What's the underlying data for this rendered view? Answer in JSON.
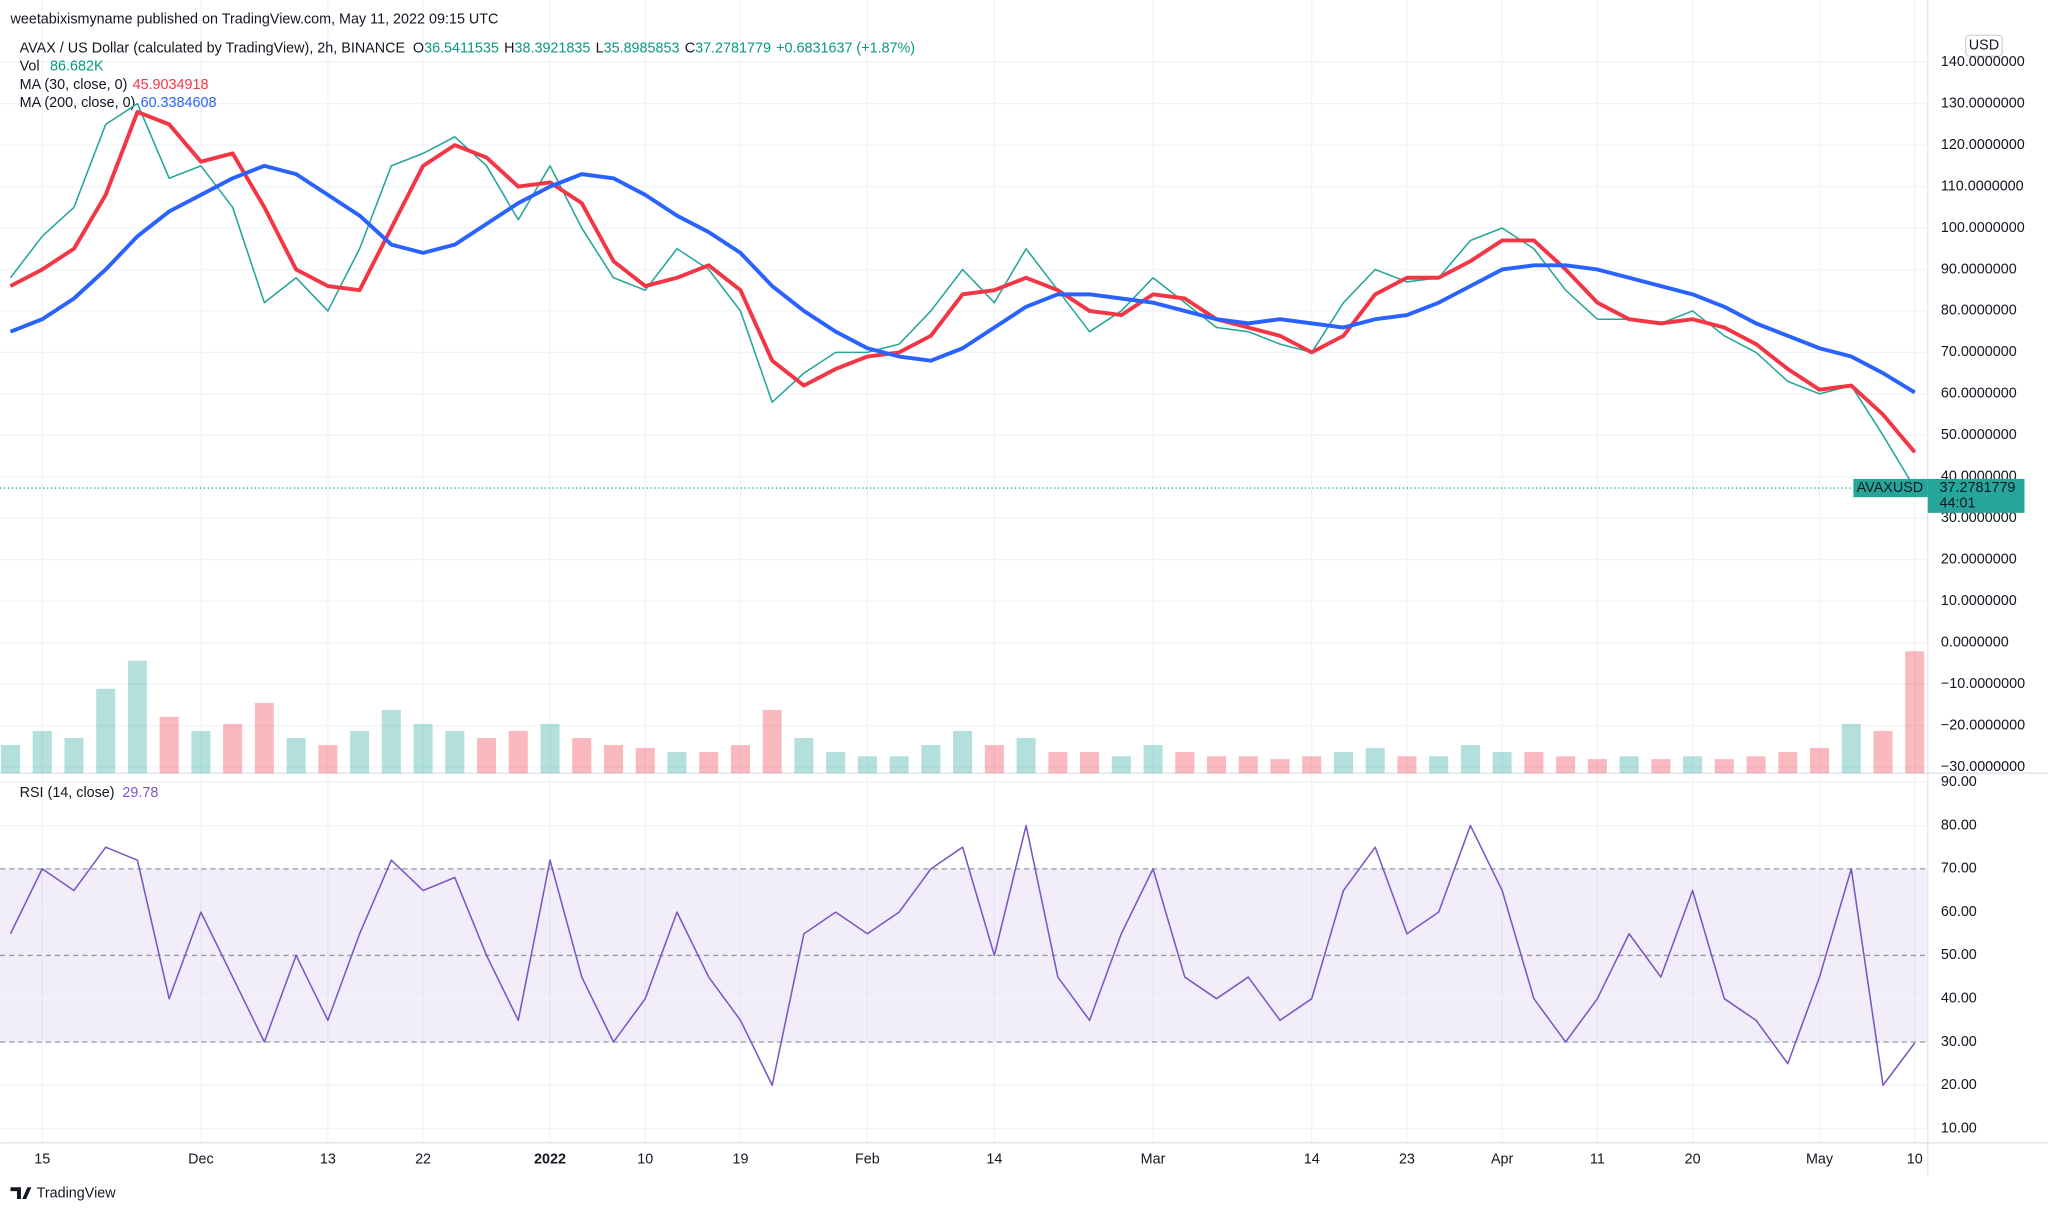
{
  "header": {
    "published": "weetabixismyname published on TradingView.com, May 11, 2022 09:15 UTC",
    "symbol": "AVAX / US Dollar (calculated by TradingView), 2h, BINANCE",
    "ohlc": [
      [
        "O",
        "36.5411535"
      ],
      [
        "H",
        "38.3921835"
      ],
      [
        "L",
        "35.8985853"
      ],
      [
        "C",
        "37.2781779"
      ]
    ],
    "change": "+0.6831637 (+1.87%)",
    "vol_name": "Vol",
    "vol_value": "86.682K",
    "currency": "USD",
    "countdown": "44:01",
    "brand": "TradingView"
  },
  "chart_data": [
    {
      "type": "line",
      "grid": true,
      "categories": [
        null,
        "15",
        null,
        null,
        null,
        null,
        "Dec",
        null,
        null,
        null,
        "13",
        null,
        null,
        "22",
        null,
        null,
        null,
        "2022",
        null,
        null,
        "10",
        null,
        null,
        "19",
        null,
        null,
        null,
        "Feb",
        null,
        null,
        null,
        "14",
        null,
        null,
        null,
        null,
        "Mar",
        null,
        null,
        null,
        null,
        "14",
        null,
        null,
        "23",
        null,
        null,
        "Apr",
        null,
        null,
        "11",
        null,
        null,
        "20",
        null,
        null,
        null,
        "May",
        null,
        null,
        "10"
      ],
      "ylim": [
        -31.5,
        155
      ],
      "yticks": [
        {
          "value": -30,
          "label": "−30.0000000"
        },
        {
          "value": -20,
          "label": "−20.0000000"
        },
        {
          "value": -10,
          "label": "−10.0000000"
        },
        {
          "value": 0,
          "label": "0.0000000"
        },
        {
          "value": 10,
          "label": "10.0000000"
        },
        {
          "value": 20,
          "label": "20.0000000"
        },
        {
          "value": 30,
          "label": "30.0000000"
        },
        {
          "value": 40,
          "label": "40.0000000"
        },
        {
          "value": 50,
          "label": "50.0000000"
        },
        {
          "value": 60,
          "label": "60.0000000"
        },
        {
          "value": 70,
          "label": "70.0000000"
        },
        {
          "value": 80,
          "label": "80.0000000"
        },
        {
          "value": 90,
          "label": "90.0000000"
        },
        {
          "value": 100,
          "label": "100.0000000"
        },
        {
          "value": 110,
          "label": "110.0000000"
        },
        {
          "value": 120,
          "label": "120.0000000"
        },
        {
          "value": 130,
          "label": "130.0000000"
        },
        {
          "value": 140,
          "label": "140.0000000"
        }
      ],
      "series": [
        {
          "name": "AVAXUSD",
          "color": "#26a69a",
          "values": [
            88,
            98,
            105,
            125,
            130,
            112,
            115,
            105,
            82,
            88,
            80,
            95,
            115,
            118,
            122,
            115,
            102,
            115,
            100,
            88,
            85,
            95,
            90,
            80,
            58,
            65,
            70,
            70,
            72,
            80,
            90,
            82,
            95,
            85,
            75,
            80,
            88,
            82,
            76,
            75,
            72,
            70,
            82,
            90,
            87,
            88,
            97,
            100,
            95,
            85,
            78,
            78,
            77,
            80,
            74,
            70,
            63,
            60,
            62,
            50,
            37.2781779
          ]
        },
        {
          "name": "MA (30, close, 0)",
          "color": "#f23645",
          "values": [
            86,
            90,
            95,
            108,
            128,
            125,
            116,
            118,
            105,
            90,
            86,
            85,
            100,
            115,
            120,
            117,
            110,
            111,
            106,
            92,
            86,
            88,
            91,
            85,
            68,
            62,
            66,
            69,
            70,
            74,
            84,
            85,
            88,
            85,
            80,
            79,
            84,
            83,
            78,
            76,
            74,
            70,
            74,
            84,
            88,
            88,
            92,
            97,
            97,
            90,
            82,
            78,
            77,
            78,
            76,
            72,
            66,
            61,
            62,
            55,
            45.9034918
          ]
        },
        {
          "name": "MA (200, close, 0)",
          "color": "#2962ff",
          "values": [
            75,
            78,
            83,
            90,
            98,
            104,
            108,
            112,
            115,
            113,
            108,
            103,
            96,
            94,
            96,
            101,
            106,
            110,
            113,
            112,
            108,
            103,
            99,
            94,
            86,
            80,
            75,
            71,
            69,
            68,
            71,
            76,
            81,
            84,
            84,
            83,
            82,
            80,
            78,
            77,
            78,
            77,
            76,
            78,
            79,
            82,
            86,
            90,
            91,
            91,
            90,
            88,
            86,
            84,
            81,
            77,
            74,
            71,
            69,
            65,
            60.3384608
          ]
        }
      ]
    },
    {
      "type": "bar",
      "ylim": [
        0,
        130
      ],
      "up_color": "#26a69a",
      "down_color": "#f23645",
      "values": [
        20,
        30,
        25,
        60,
        80,
        40,
        30,
        35,
        50,
        25,
        20,
        30,
        45,
        35,
        30,
        25,
        30,
        35,
        25,
        20,
        18,
        15,
        15,
        20,
        45,
        25,
        15,
        12,
        12,
        20,
        30,
        20,
        25,
        15,
        15,
        12,
        20,
        15,
        12,
        12,
        10,
        12,
        15,
        18,
        12,
        12,
        20,
        15,
        15,
        12,
        10,
        12,
        10,
        12,
        10,
        12,
        15,
        18,
        35,
        30,
        86.682
      ]
    },
    {
      "type": "line",
      "title": "RSI (14, close)",
      "ylim": [
        6.7,
        92.1
      ],
      "yticks": [
        {
          "value": 10,
          "label": "10.00"
        },
        {
          "value": 20,
          "label": "20.00"
        },
        {
          "value": 30,
          "label": "30.00"
        },
        {
          "value": 40,
          "label": "40.00"
        },
        {
          "value": 50,
          "label": "50.00"
        },
        {
          "value": 60,
          "label": "60.00"
        },
        {
          "value": 70,
          "label": "70.00"
        },
        {
          "value": 80,
          "label": "80.00"
        },
        {
          "value": 90,
          "label": "90.00"
        }
      ],
      "bands": [
        30,
        50,
        70
      ],
      "band_color": "#7e57c2",
      "series": [
        {
          "name": "RSI",
          "color": "#7e57c2",
          "values": [
            55,
            70,
            65,
            75,
            72,
            40,
            60,
            45,
            30,
            50,
            35,
            55,
            72,
            65,
            68,
            50,
            35,
            72,
            45,
            30,
            40,
            60,
            45,
            35,
            20,
            55,
            60,
            55,
            60,
            70,
            75,
            50,
            80,
            45,
            35,
            55,
            70,
            45,
            40,
            45,
            35,
            40,
            65,
            75,
            55,
            60,
            80,
            65,
            40,
            30,
            40,
            55,
            45,
            65,
            40,
            35,
            25,
            45,
            70,
            20,
            29.78
          ]
        }
      ]
    }
  ]
}
